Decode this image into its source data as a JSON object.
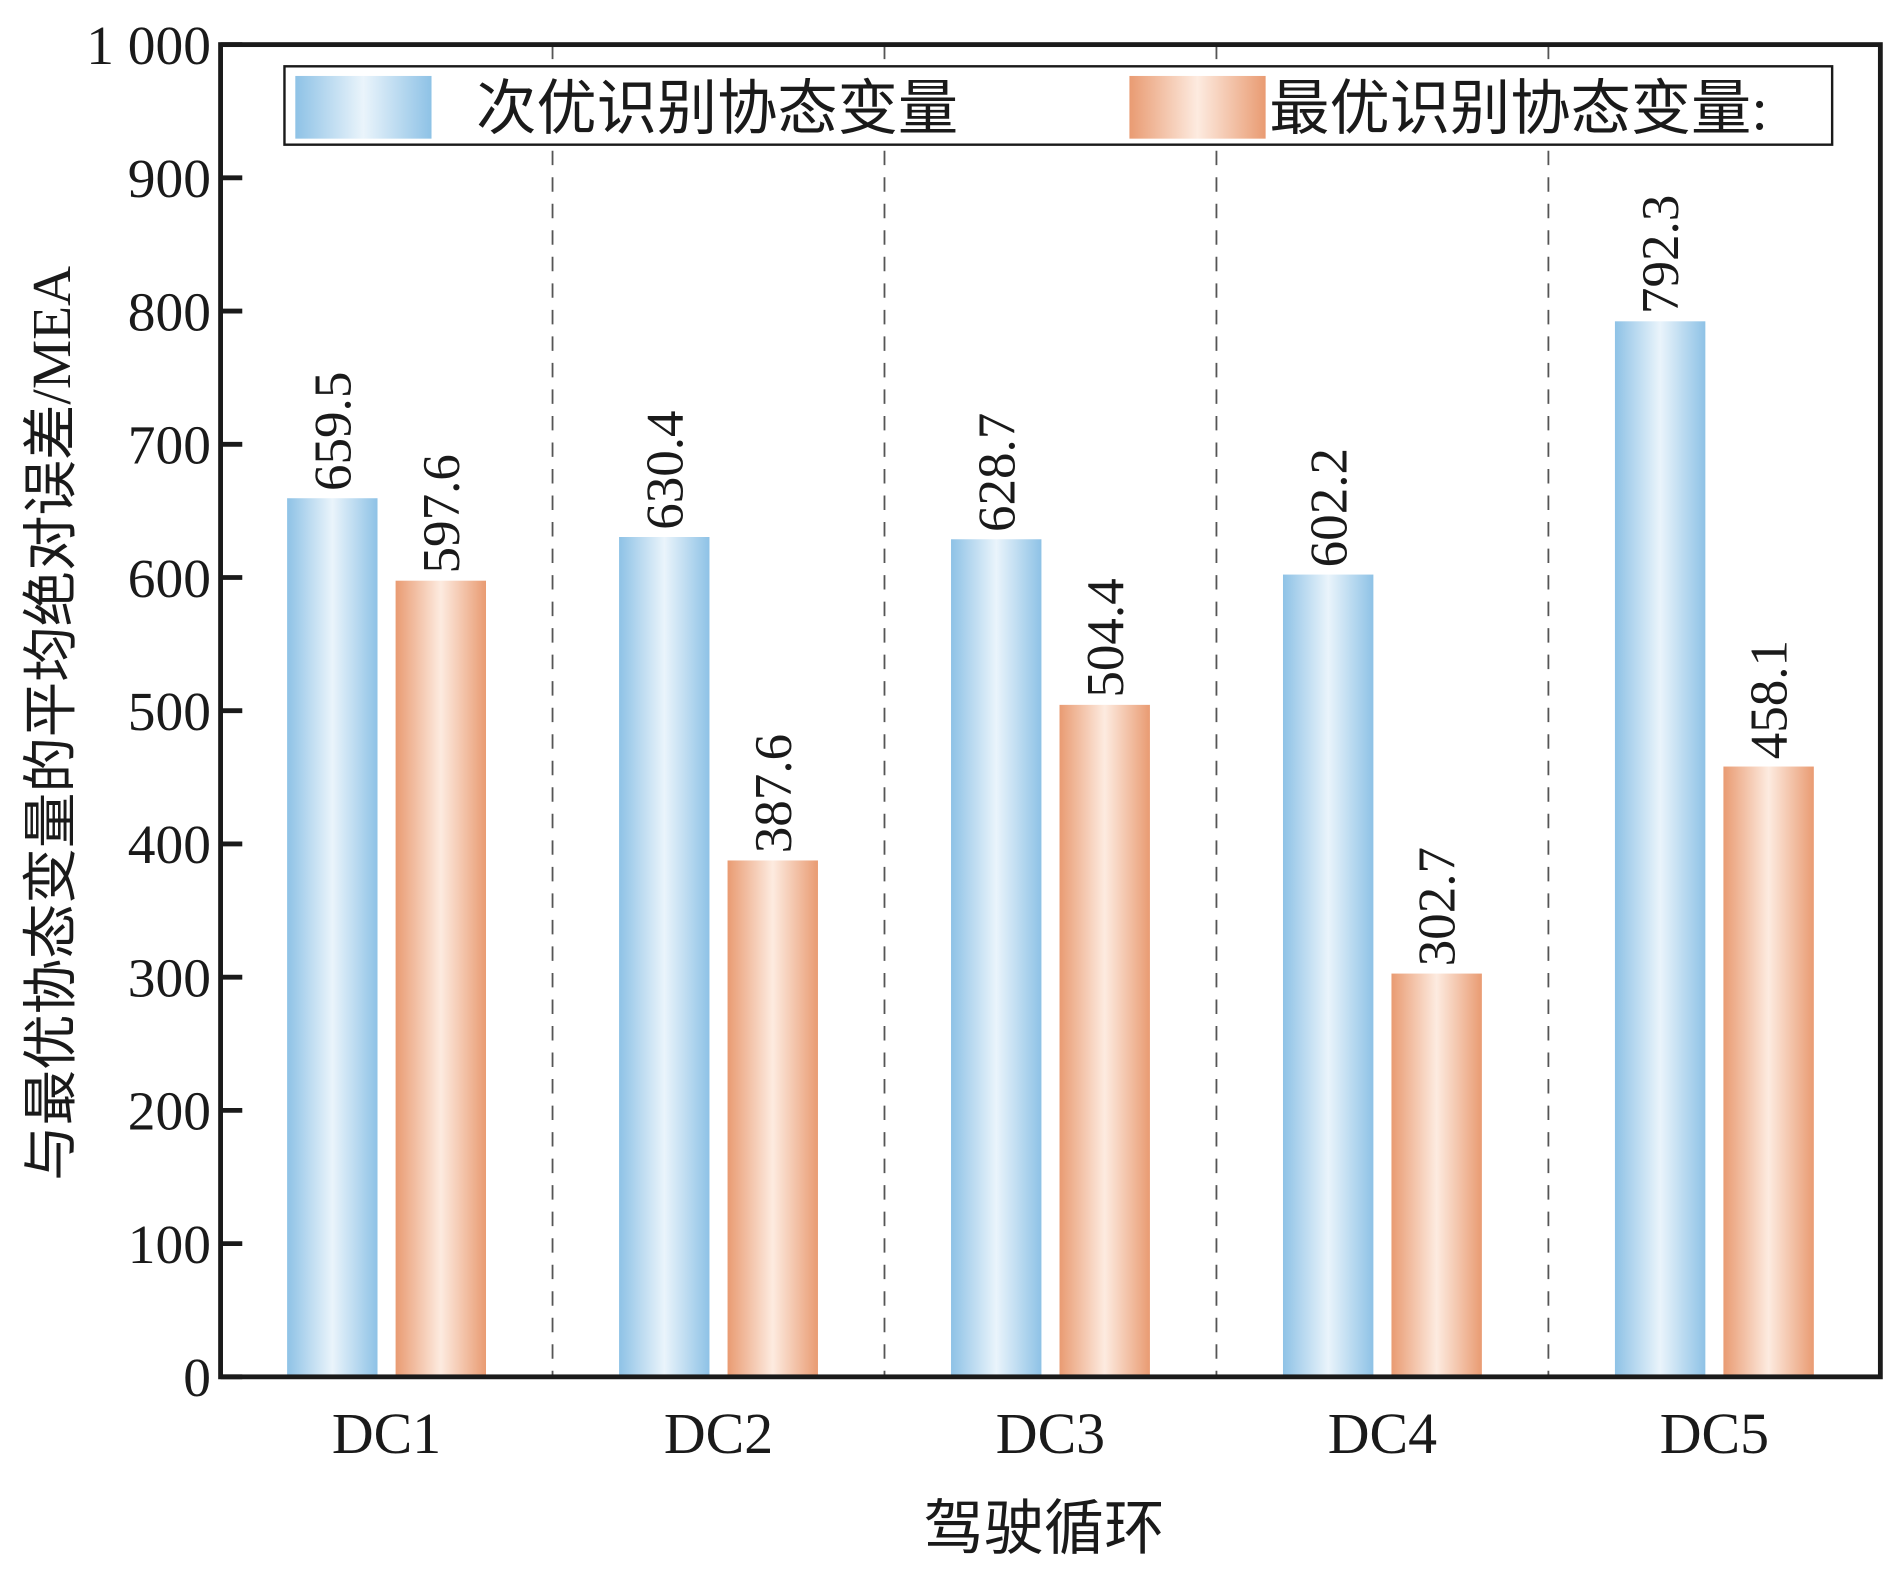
{
  "chart_data": {
    "type": "bar",
    "title": "",
    "xlabel": "驾驶循环",
    "ylabel": "与最优协态变量的平均绝对误差/MEA",
    "ylim": [
      0,
      1000
    ],
    "yticks": [
      0,
      100,
      200,
      300,
      400,
      500,
      600,
      700,
      800,
      900,
      1000
    ],
    "ytick_labels": [
      "0",
      "100",
      "200",
      "300",
      "400",
      "500",
      "600",
      "700",
      "800",
      "900",
      "1 000"
    ],
    "categories": [
      "DC1",
      "DC2",
      "DC3",
      "DC4",
      "DC5"
    ],
    "legend_position": "top",
    "grid": "vertical dashed separators",
    "series": [
      {
        "name": "次优识别协态变量",
        "color": "#8fc3e6",
        "values": [
          659.5,
          630.4,
          628.7,
          602.2,
          792.3
        ]
      },
      {
        "name": "最优识别协态变量:",
        "color": "#eba07a",
        "values": [
          597.6,
          387.6,
          504.4,
          302.7,
          458.1
        ]
      }
    ]
  }
}
